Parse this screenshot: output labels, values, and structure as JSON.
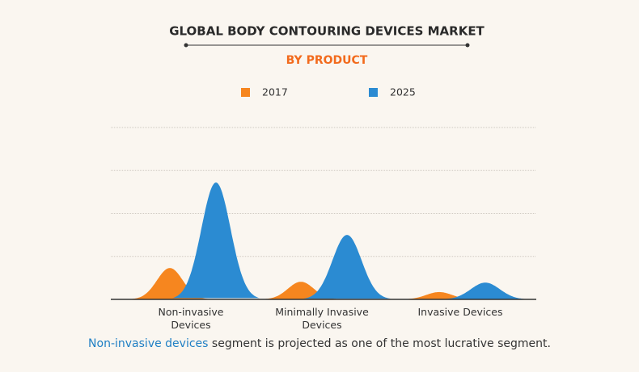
{
  "chart_data": {
    "type": "peak",
    "title": "GLOBAL BODY CONTOURING DEVICES MARKET",
    "subtitle": "BY PRODUCT",
    "categories": [
      "Non-invasive Devices",
      "Minimally Invasive Devices",
      "Invasive Devices"
    ],
    "series": [
      {
        "name": "2017",
        "color": "#f6861f",
        "values": [
          0.73,
          0.41,
          0.17
        ]
      },
      {
        "name": "2025",
        "color": "#2b8bd2",
        "values": [
          2.72,
          1.5,
          0.39
        ]
      }
    ],
    "ylim": [
      0,
      4
    ],
    "yticks": [
      1,
      2,
      3,
      4
    ],
    "grid": true,
    "footnote": {
      "highlight": "Non-invasive devices",
      "text": "segment is projected as one of the most lucrative segment."
    }
  }
}
